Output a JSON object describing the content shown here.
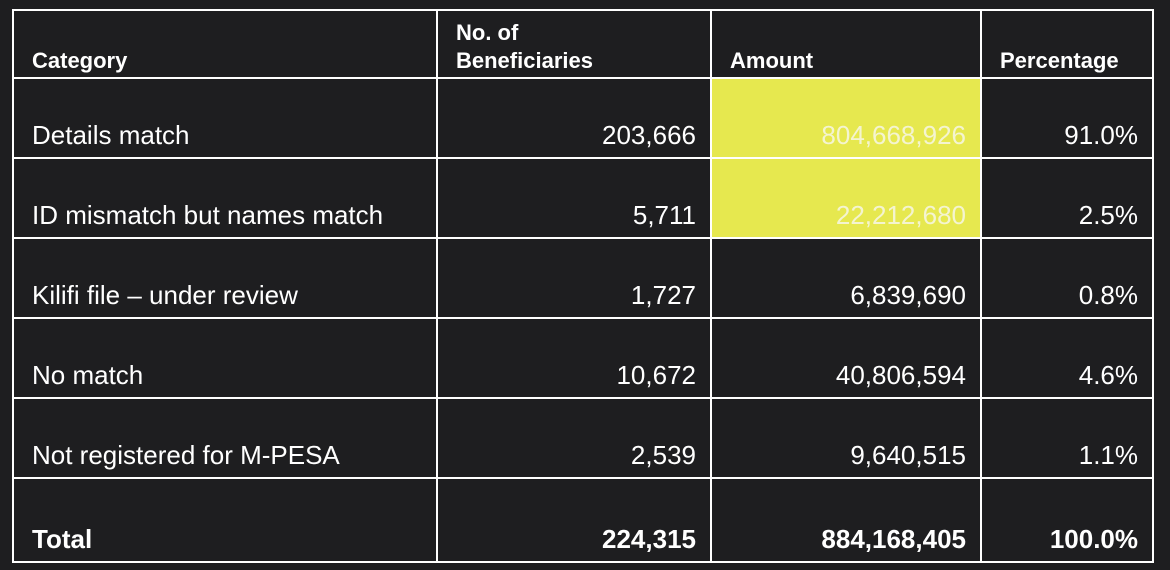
{
  "table": {
    "header": [
      "Category",
      "No. of Beneficiaries",
      "Amount",
      "Percentage"
    ],
    "rows": [
      [
        "Details match",
        "203,666",
        "804,668,926",
        "91.0%"
      ],
      [
        "ID mismatch but names match",
        "5,711",
        "22,212,680",
        "2.5%"
      ],
      [
        "Kilifi file – under review",
        "1,727",
        "6,839,690",
        "0.8%"
      ],
      [
        "No match",
        "10,672",
        "40,806,594",
        "4.6%"
      ],
      [
        "Not registered for M-PESA",
        "2,539",
        "9,640,515",
        "1.1%"
      ]
    ],
    "total": [
      "Total",
      "224,315",
      "884,168,405",
      "100.0%"
    ],
    "highlight_color": "#e6e84f"
  }
}
